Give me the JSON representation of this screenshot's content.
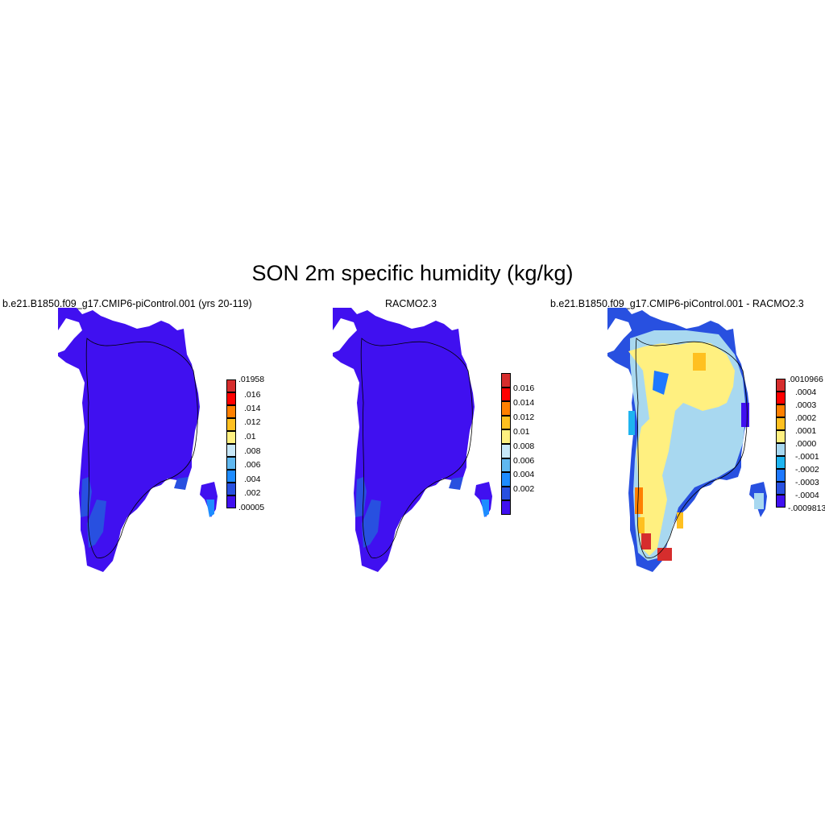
{
  "title": "SON 2m specific humidity (kg/kg)",
  "panels": [
    {
      "title": "b.e21.B1850.f09_g17.CMIP6-piControl.001 (yrs 20-119)",
      "colorbar": {
        "labels": [
          ".01958",
          ".016",
          ".014",
          ".012",
          ".01",
          ".008",
          ".006",
          ".004",
          ".002",
          ".00005"
        ],
        "colors": [
          "#d62d2d",
          "#ff0000",
          "#ff8000",
          "#ffc020",
          "#fff080",
          "#c8e8f8",
          "#60b8f0",
          "#1e8cff",
          "#2850e0",
          "#4010f0"
        ]
      }
    },
    {
      "title": "RACMO2.3",
      "colorbar": {
        "labels": [
          "0.016",
          "0.014",
          "0.012",
          "0.01",
          "0.008",
          "0.006",
          "0.004",
          "0.002"
        ],
        "colors": [
          "#d62d2d",
          "#ff0000",
          "#ff8000",
          "#ffc020",
          "#fff080",
          "#c8e8f8",
          "#60b8f0",
          "#1e8cff",
          "#2850e0",
          "#4010f0"
        ]
      }
    },
    {
      "title": "b.e21.B1850.f09_g17.CMIP6-piControl.001 - RACMO2.3",
      "colorbar": {
        "labels": [
          ".0010966",
          ".0004",
          ".0003",
          ".0002",
          ".0001",
          ".0000",
          "-.0001",
          "-.0002",
          "-.0003",
          "-.0004",
          "-.0009813"
        ],
        "colors": [
          "#d62d2d",
          "#ff0000",
          "#ff8000",
          "#ffc020",
          "#fff080",
          "#a8d8f0",
          "#1eb4f0",
          "#1e78ff",
          "#2850e0",
          "#4010f0"
        ]
      }
    }
  ]
}
